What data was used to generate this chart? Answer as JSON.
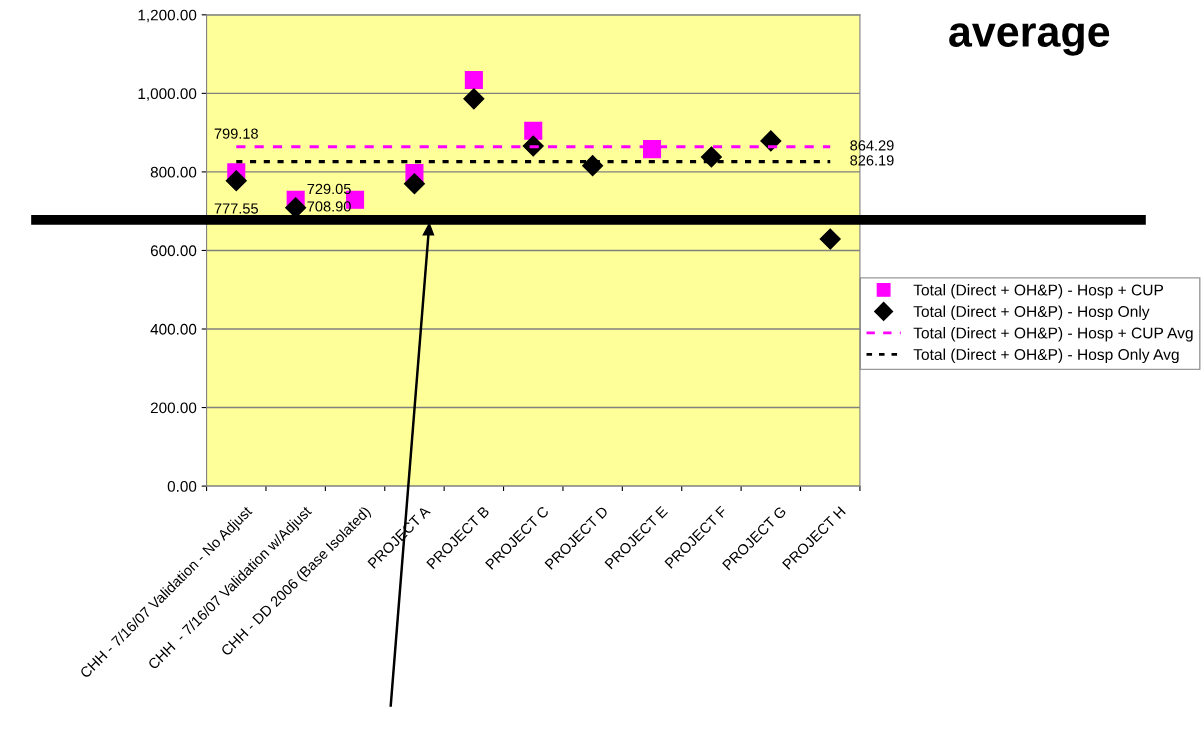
{
  "chart_data": {
    "type": "scatter",
    "title": "average",
    "categories": [
      "CHH - 7/16/07 Validation - No Adjust",
      "CHH  - 7/16/07 Validation w/Adjust",
      "CHH - DD 2006 (Base Isolated)",
      "PROJECT A",
      "PROJECT B",
      "PROJECT C",
      "PROJECT D",
      "PROJECT E",
      "PROJECT F",
      "PROJECT G",
      "PROJECT H"
    ],
    "series": [
      {
        "name": "Total (Direct + OH&P) - Hosp + CUP",
        "type": "scatter",
        "marker": "square",
        "color": "#ff00ff",
        "values": [
          799.18,
          729.05,
          729,
          797,
          1034,
          905,
          null,
          858,
          null,
          null,
          null
        ],
        "value_labels": [
          "799.18",
          "729.05",
          null,
          null,
          null,
          null,
          null,
          null,
          null,
          null,
          null
        ]
      },
      {
        "name": "Total (Direct + OH&P) - Hosp Only",
        "type": "scatter",
        "marker": "diamond",
        "color": "#000000",
        "values": [
          777.55,
          708.9,
          null,
          770,
          986,
          866,
          816,
          null,
          838,
          879,
          629
        ],
        "value_labels": [
          "777.55",
          "708.90",
          null,
          null,
          null,
          null,
          null,
          null,
          null,
          null,
          null
        ]
      },
      {
        "name": "Total (Direct + OH&P) - Hosp + CUP Avg",
        "type": "line",
        "line_style": "dashed",
        "color": "#ff00ff",
        "values": [
          864.29,
          864.29,
          864.29,
          864.29,
          864.29,
          864.29,
          864.29,
          864.29,
          864.29,
          864.29,
          864.29
        ],
        "value_labels": [
          null,
          null,
          null,
          null,
          null,
          null,
          null,
          null,
          null,
          null,
          "864.29"
        ]
      },
      {
        "name": "Total (Direct + OH&P) - Hosp Only Avg",
        "type": "line",
        "line_style": "dotted",
        "color": "#000000",
        "values": [
          826.19,
          826.19,
          826.19,
          826.19,
          826.19,
          826.19,
          826.19,
          826.19,
          826.19,
          826.19,
          826.19
        ],
        "value_labels": [
          null,
          null,
          null,
          null,
          null,
          null,
          null,
          null,
          null,
          null,
          "826.19"
        ]
      }
    ],
    "ylim": [
      0,
      1200
    ],
    "yticks": [
      {
        "value": 0,
        "label": "0.00"
      },
      {
        "value": 200,
        "label": "200.00"
      },
      {
        "value": 400,
        "label": "400.00"
      },
      {
        "value": 600,
        "label": "600.00"
      },
      {
        "value": 800,
        "label": "800.00"
      },
      {
        "value": 1000,
        "label": "1,000.00"
      },
      {
        "value": 1200,
        "label": "1,200.00"
      }
    ],
    "ref_lines": [
      {
        "axis": "y",
        "value": 678,
        "color": "#000000",
        "line_style": "solid"
      }
    ],
    "grid": "y",
    "legend": "right"
  }
}
